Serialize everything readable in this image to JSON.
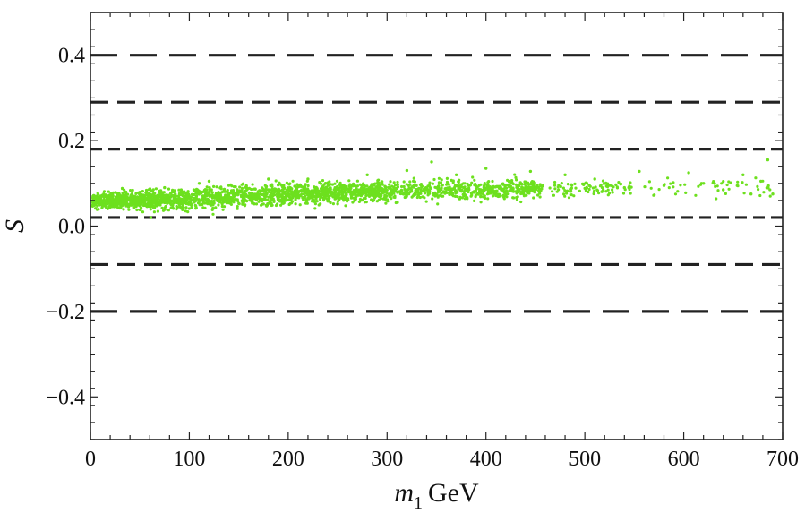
{
  "chart_data": {
    "type": "scatter",
    "title": "",
    "xlabel": {
      "var": "m",
      "sub": "1",
      "unit": "GeV"
    },
    "ylabel": "S",
    "xlim": [
      0,
      700
    ],
    "ylim": [
      -0.5,
      0.5
    ],
    "xticks": [
      0,
      100,
      200,
      300,
      400,
      500,
      600,
      700
    ],
    "xtick_labels": [
      "0",
      "100",
      "200",
      "300",
      "400",
      "500",
      "600",
      "700"
    ],
    "yticks": [
      0.4,
      0.2,
      0.0,
      -0.2,
      -0.4
    ],
    "ytick_labels": [
      "0.4",
      "0.2",
      "0.0",
      "−0.2",
      "−0.4"
    ],
    "grid": false,
    "point_color": "#6de01e",
    "reference_lines": [
      {
        "y": 0.4,
        "style": "long-dash"
      },
      {
        "y": 0.29,
        "style": "medium-dash"
      },
      {
        "y": 0.18,
        "style": "short-dash"
      },
      {
        "y": 0.02,
        "style": "short-dash"
      },
      {
        "y": -0.09,
        "style": "medium-dash"
      },
      {
        "y": -0.2,
        "style": "long-dash"
      }
    ],
    "scatter_band": {
      "description": "dense cloud of green points",
      "x_range": [
        2,
        692
      ],
      "center": [
        [
          0,
          0.058
        ],
        [
          50,
          0.06
        ],
        [
          100,
          0.064
        ],
        [
          150,
          0.07
        ],
        [
          200,
          0.075
        ],
        [
          300,
          0.082
        ],
        [
          400,
          0.086
        ],
        [
          500,
          0.088
        ],
        [
          600,
          0.09
        ],
        [
          700,
          0.092
        ]
      ],
      "half_width": [
        [
          0,
          0.018
        ],
        [
          100,
          0.025
        ],
        [
          200,
          0.024
        ],
        [
          300,
          0.022
        ],
        [
          400,
          0.022
        ],
        [
          500,
          0.02
        ],
        [
          700,
          0.02
        ]
      ],
      "sample_points": [
        [
          5,
          0.055
        ],
        [
          12,
          0.072
        ],
        [
          20,
          0.045
        ],
        [
          35,
          0.08
        ],
        [
          50,
          0.038
        ],
        [
          61,
          0.02
        ],
        [
          75,
          0.09
        ],
        [
          90,
          0.05
        ],
        [
          110,
          0.1
        ],
        [
          120,
          0.105
        ],
        [
          140,
          0.06
        ],
        [
          180,
          0.11
        ],
        [
          220,
          0.11
        ],
        [
          250,
          0.052
        ],
        [
          280,
          0.12
        ],
        [
          320,
          0.13
        ],
        [
          345,
          0.15
        ],
        [
          370,
          0.12
        ],
        [
          400,
          0.135
        ],
        [
          445,
          0.128
        ],
        [
          480,
          0.12
        ],
        [
          510,
          0.11
        ],
        [
          540,
          0.09
        ],
        [
          555,
          0.128
        ],
        [
          580,
          0.095
        ],
        [
          605,
          0.125
        ],
        [
          620,
          0.1
        ],
        [
          640,
          0.085
        ],
        [
          660,
          0.12
        ],
        [
          668,
          0.075
        ],
        [
          678,
          0.105
        ],
        [
          685,
          0.155
        ],
        [
          690,
          0.075
        ]
      ]
    }
  }
}
